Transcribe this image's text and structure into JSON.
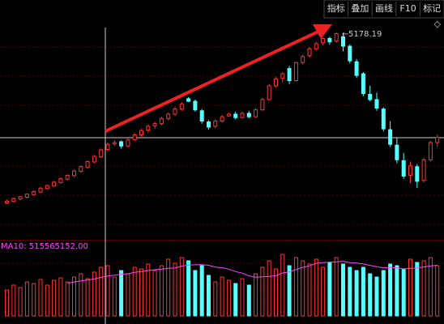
{
  "toolbar": [
    "指标",
    "叠加",
    "画线",
    "F10",
    "标记"
  ],
  "chart_data": {
    "type": "candlestick",
    "up_color": "#ff3232",
    "down_color": "#54ffff",
    "ylim": [
      2780,
      5350
    ],
    "peak_label": "5178.19",
    "open": [
      3200,
      3215,
      3245,
      3265,
      3295,
      3325,
      3365,
      3395,
      3435,
      3475,
      3515,
      3565,
      3610,
      3675,
      3735,
      3820,
      3885,
      3910,
      3860,
      3935,
      3990,
      4045,
      4095,
      4120,
      4180,
      4230,
      4290,
      4410,
      4380,
      4270,
      4140,
      4090,
      4150,
      4210,
      4230,
      4190,
      4240,
      4200,
      4280,
      4400,
      4560,
      4650,
      4760,
      4620,
      4830,
      4910,
      4990,
      5060,
      5110,
      5080,
      5130,
      5020,
      4840,
      4700,
      4460,
      4400,
      4290,
      4050,
      3870,
      3690,
      3520,
      3620,
      3460,
      3700,
      3900
    ],
    "high": [
      3235,
      3260,
      3280,
      3310,
      3345,
      3385,
      3410,
      3455,
      3495,
      3530,
      3585,
      3635,
      3690,
      3755,
      3830,
      3900,
      3930,
      3925,
      3950,
      4010,
      4060,
      4110,
      4140,
      4200,
      4250,
      4310,
      4370,
      4430,
      4400,
      4290,
      4160,
      4170,
      4220,
      4250,
      4260,
      4260,
      4270,
      4300,
      4420,
      4580,
      4660,
      4720,
      4790,
      4840,
      4920,
      5010,
      5070,
      5120,
      5130,
      5178.19,
      5150,
      5040,
      4870,
      4720,
      4560,
      4480,
      4310,
      4150,
      3960,
      3780,
      3680,
      3650,
      3720,
      3920,
      3990
    ],
    "low": [
      3185,
      3205,
      3230,
      3250,
      3285,
      3310,
      3350,
      3385,
      3425,
      3460,
      3500,
      3550,
      3600,
      3660,
      3720,
      3800,
      3860,
      3830,
      3850,
      3920,
      3970,
      4020,
      4060,
      4100,
      4160,
      4210,
      4270,
      4370,
      4260,
      4120,
      4050,
      4070,
      4130,
      4200,
      4170,
      4180,
      4180,
      4190,
      4270,
      4390,
      4540,
      4600,
      4580,
      4610,
      4810,
      4890,
      4970,
      5030,
      5040,
      5060,
      4960,
      4820,
      4650,
      4440,
      4380,
      4270,
      4030,
      3850,
      3660,
      3480,
      3430,
      3373,
      3440,
      3680,
      3850
    ],
    "close": [
      3220,
      3250,
      3270,
      3300,
      3330,
      3370,
      3400,
      3440,
      3480,
      3520,
      3570,
      3620,
      3680,
      3740,
      3815,
      3880,
      3900,
      3860,
      3930,
      3990,
      4040,
      4090,
      4120,
      4180,
      4230,
      4290,
      4350,
      4380,
      4280,
      4150,
      4080,
      4150,
      4200,
      4230,
      4190,
      4240,
      4200,
      4280,
      4400,
      4560,
      4640,
      4700,
      4620,
      4830,
      4900,
      4990,
      5050,
      5110,
      5070,
      5166,
      5020,
      4850,
      4680,
      4470,
      4400,
      4300,
      4060,
      3880,
      3700,
      3510,
      3630,
      3450,
      3700,
      3900,
      3960
    ],
    "volume_ylim": [
      0,
      800000000
    ],
    "volume": [
      320000000,
      380000000,
      350000000,
      420000000,
      400000000,
      450000000,
      380000000,
      440000000,
      470000000,
      420000000,
      480000000,
      520000000,
      460000000,
      540000000,
      600000000,
      620000000,
      480000000,
      560000000,
      520000000,
      600000000,
      580000000,
      640000000,
      560000000,
      620000000,
      700000000,
      650000000,
      720000000,
      680000000,
      560000000,
      620000000,
      500000000,
      420000000,
      480000000,
      440000000,
      400000000,
      460000000,
      380000000,
      520000000,
      600000000,
      680000000,
      580000000,
      760000000,
      620000000,
      720000000,
      680000000,
      640000000,
      700000000,
      600000000,
      660000000,
      720000000,
      640000000,
      600000000,
      560000000,
      600000000,
      520000000,
      480000000,
      560000000,
      640000000,
      620000000,
      580000000,
      700000000,
      660000000,
      680000000,
      720000000,
      620000000
    ],
    "ma10_label": "MA10: 515565152.00",
    "ma10_color": "#ff44ff",
    "ma10": [
      null,
      null,
      null,
      null,
      null,
      null,
      null,
      null,
      null,
      403000000,
      419000000,
      433000000,
      444000000,
      456000000,
      476000000,
      493000000,
      503000000,
      515565152,
      520000000,
      538000000,
      548000000,
      560000000,
      570000000,
      578000000,
      588000000,
      591000000,
      615000000,
      627000000,
      631000000,
      633000000,
      625000000,
      603000000,
      595000000,
      577000000,
      547000000,
      528000000,
      494000000,
      478000000,
      482000000,
      488000000,
      496000000,
      530000000,
      544000000,
      572000000,
      600000000,
      618000000,
      650000000,
      658000000,
      664000000,
      668000000,
      674000000,
      658000000,
      652000000,
      640000000,
      624000000,
      608000000,
      594000000,
      598000000,
      594000000,
      580000000,
      586000000,
      592000000,
      604000000,
      616000000,
      626000000
    ]
  }
}
